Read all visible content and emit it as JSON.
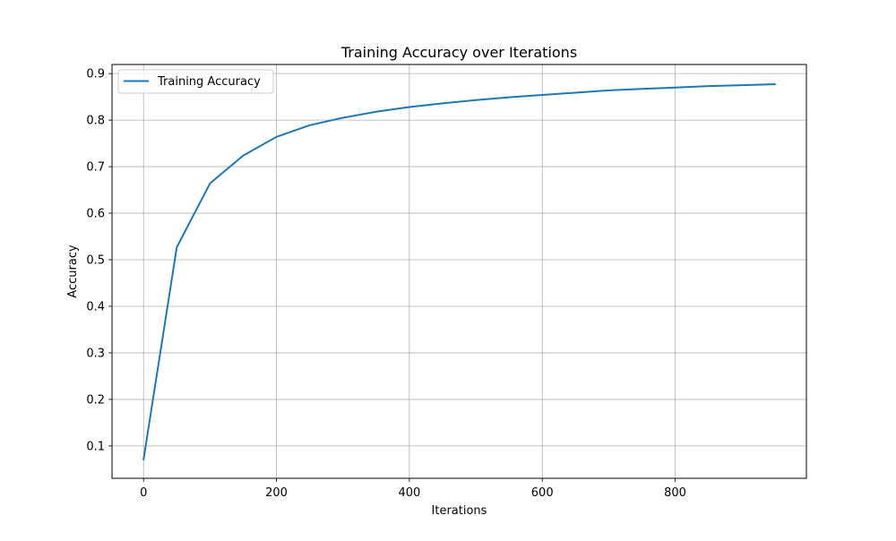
{
  "chart_data": {
    "type": "line",
    "title": "Training Accuracy over Iterations",
    "xlabel": "Iterations",
    "ylabel": "Accuracy",
    "xlim": [
      -47.5,
      997.5
    ],
    "ylim": [
      0.0305,
      0.9195
    ],
    "xticks": [
      0,
      200,
      400,
      600,
      800
    ],
    "xtick_labels": [
      "0",
      "200",
      "400",
      "600",
      "800"
    ],
    "yticks": [
      0.1,
      0.2,
      0.3,
      0.4,
      0.5,
      0.6,
      0.7,
      0.8,
      0.9
    ],
    "ytick_labels": [
      "0.1",
      "0.2",
      "0.3",
      "0.4",
      "0.5",
      "0.6",
      "0.7",
      "0.8",
      "0.9"
    ],
    "grid": true,
    "legend_position": "upper-left",
    "series": [
      {
        "name": "Training Accuracy",
        "color": "#1f77b4",
        "x": [
          0,
          50,
          100,
          150,
          200,
          250,
          300,
          350,
          400,
          450,
          500,
          550,
          600,
          650,
          700,
          750,
          800,
          850,
          900,
          950
        ],
        "y": [
          0.071,
          0.527,
          0.664,
          0.724,
          0.764,
          0.789,
          0.805,
          0.818,
          0.828,
          0.836,
          0.843,
          0.849,
          0.854,
          0.859,
          0.864,
          0.867,
          0.87,
          0.873,
          0.875,
          0.877
        ]
      }
    ]
  }
}
